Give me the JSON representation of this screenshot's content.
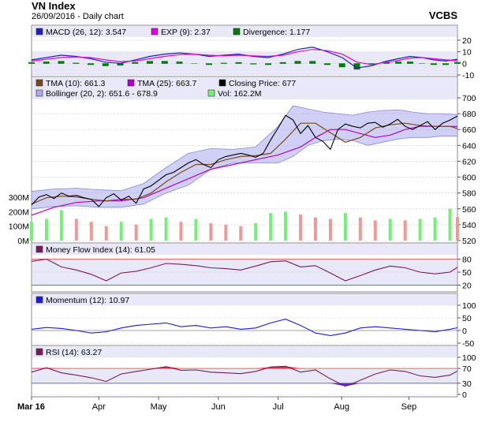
{
  "header": {
    "title": "VN Index",
    "date": "26/09/2016",
    "frequency": "Daily chart",
    "broker": "VCBS"
  },
  "colors": {
    "panel_bg": "#e8e8f8",
    "legend_bg": "#e8e8f8",
    "grid": "#c8c8c8",
    "macd": "#1e1ec8",
    "signal": "#e000e0",
    "divergence": "#007a00",
    "tma10": "#7a4a14",
    "tma25": "#b000d0",
    "close": "#000000",
    "bollinger_fill": "#aaaaee",
    "bollinger_line": "#8888dd",
    "vol_up": "#77ee77",
    "vol_down": "#ee9999",
    "mfi": "#7a1a5a",
    "momentum": "#1a1ae0",
    "rsi": "#7a1a5a",
    "overbought": "#ee6666",
    "oversold": "#6666ee",
    "rsi_fill_hi": "#dd3333",
    "rsi_fill_lo": "#5533cc"
  },
  "chart_data": [
    {
      "type": "line",
      "name": "macd-panel",
      "legend": [
        {
          "label": "MACD (26, 12): 3.547",
          "color": "#1e1ec8"
        },
        {
          "label": "EXP (9): 2.37",
          "color": "#e000e0"
        },
        {
          "label": "Divergence: 1.177",
          "color": "#007a00"
        }
      ],
      "ylim": [
        -10,
        22
      ],
      "yticks": [
        -10,
        0,
        10,
        20
      ],
      "series": [
        {
          "name": "MACD (26, 12)",
          "x": [
            0,
            5,
            10,
            15,
            20,
            25,
            30,
            35,
            40,
            45,
            50,
            55,
            60,
            65,
            70,
            75,
            80,
            85,
            90,
            95,
            100,
            105,
            110,
            115,
            120,
            124,
            128,
            132,
            136,
            140,
            144
          ],
          "values": [
            3,
            5,
            7,
            6,
            4,
            1,
            0,
            3,
            6,
            8,
            9,
            8,
            6,
            7,
            8,
            6,
            5,
            8,
            12,
            14,
            10,
            5,
            -4,
            -2,
            2,
            4,
            6,
            5,
            3,
            2,
            3.547
          ]
        },
        {
          "name": "EXP (9)",
          "x": [
            0,
            5,
            10,
            15,
            20,
            25,
            30,
            35,
            40,
            45,
            50,
            55,
            60,
            65,
            70,
            75,
            80,
            85,
            90,
            95,
            100,
            105,
            110,
            115,
            120,
            124,
            128,
            132,
            136,
            140,
            144
          ],
          "values": [
            2,
            3.5,
            5,
            5.5,
            5,
            3,
            1.5,
            2,
            4,
            6,
            7.5,
            8,
            7,
            6.5,
            7,
            6.5,
            6,
            7,
            10,
            12,
            11,
            8,
            1,
            -1,
            1,
            2.5,
            4.5,
            5,
            4,
            3,
            2.37
          ]
        }
      ],
      "bars": {
        "name": "Divergence",
        "x": [
          0,
          5,
          10,
          15,
          20,
          25,
          30,
          35,
          40,
          45,
          50,
          55,
          60,
          65,
          70,
          75,
          80,
          85,
          90,
          95,
          100,
          105,
          110,
          115,
          120,
          124,
          128,
          132,
          136,
          140,
          144
        ],
        "values": [
          1,
          1.5,
          2,
          0.5,
          -1,
          -2,
          -1.5,
          1,
          2,
          2,
          1.5,
          0,
          -1,
          0.5,
          1,
          -0.5,
          -1,
          1,
          2,
          2,
          -1,
          -3,
          -5,
          -1,
          1,
          1.5,
          1.5,
          0,
          -1,
          -1,
          1.177
        ]
      }
    },
    {
      "type": "line",
      "name": "price-panel",
      "legend": [
        {
          "label": "TMA (10): 661.3",
          "color": "#7a4a14"
        },
        {
          "label": "TMA (25): 663.7",
          "color": "#b000d0"
        },
        {
          "label": "Closing Price: 677",
          "color": "#000000"
        },
        {
          "label": "Bollinger (20, 2): 651.6 - 678.9",
          "color": "#aaaaee"
        },
        {
          "label": "Vol: 162.2M",
          "color": "#77ee77"
        }
      ],
      "ylim": [
        520,
        700
      ],
      "yticks": [
        520,
        540,
        560,
        580,
        600,
        620,
        640,
        660,
        680,
        700
      ],
      "vol_ticks": [
        "0M",
        "100M",
        "200M",
        "300M"
      ],
      "vol_max": 300,
      "x_labels": [
        {
          "x": 0,
          "label": "Mar 16"
        },
        {
          "x": 18,
          "label": "Apr"
        },
        {
          "x": 34,
          "label": "May"
        },
        {
          "x": 50,
          "label": "Jun"
        },
        {
          "x": 66,
          "label": "Jul"
        },
        {
          "x": 83,
          "label": "Aug"
        },
        {
          "x": 101,
          "label": "Sep"
        }
      ],
      "close": {
        "x": [
          0,
          2,
          4,
          6,
          8,
          10,
          12,
          14,
          16,
          18,
          20,
          22,
          24,
          26,
          28,
          30,
          32,
          34,
          36,
          38,
          40,
          42,
          44,
          46,
          48,
          50,
          52,
          54,
          56,
          58,
          60,
          62,
          64,
          66,
          68,
          70,
          72,
          74,
          76,
          78,
          80,
          82,
          84,
          86,
          88,
          90,
          92,
          94,
          96,
          98,
          100,
          102,
          104,
          106,
          108,
          110,
          112,
          114
        ],
        "values": [
          565,
          575,
          578,
          573,
          580,
          576,
          577,
          574,
          572,
          563,
          574,
          579,
          571,
          576,
          567,
          585,
          589,
          596,
          603,
          606,
          612,
          618,
          622,
          616,
          612,
          622,
          626,
          628,
          630,
          628,
          625,
          630,
          647,
          662,
          678,
          672,
          655,
          665,
          650,
          645,
          635,
          660,
          667,
          664,
          662,
          668,
          669,
          663,
          667,
          673,
          664,
          660,
          665,
          670,
          660,
          668,
          672,
          677
        ]
      },
      "tma10": {
        "x": [
          0,
          4,
          8,
          12,
          16,
          20,
          24,
          28,
          32,
          36,
          40,
          44,
          48,
          52,
          56,
          60,
          64,
          68,
          72,
          76,
          80,
          84,
          88,
          92,
          96,
          100,
          104,
          108,
          112,
          114
        ],
        "values": [
          566,
          574,
          576,
          575,
          572,
          570,
          572,
          572,
          580,
          594,
          606,
          616,
          616,
          622,
          626,
          627,
          630,
          648,
          668,
          668,
          656,
          644,
          650,
          662,
          666,
          668,
          665,
          664,
          664,
          661.3
        ]
      },
      "tma25": {
        "x": [
          0,
          6,
          12,
          18,
          24,
          30,
          36,
          42,
          48,
          54,
          60,
          66,
          72,
          76,
          80,
          84,
          88,
          92,
          96,
          100,
          104,
          108,
          112,
          114
        ],
        "values": [
          552,
          562,
          568,
          570,
          570,
          574,
          586,
          598,
          610,
          616,
          622,
          628,
          638,
          650,
          660,
          660,
          655,
          650,
          653,
          660,
          664,
          664,
          664,
          663.7
        ]
      },
      "boll_upper": {
        "x": [
          0,
          6,
          12,
          18,
          24,
          30,
          36,
          42,
          48,
          54,
          60,
          66,
          70,
          74,
          78,
          82,
          86,
          90,
          94,
          98,
          102,
          106,
          110,
          114
        ],
        "values": [
          582,
          585,
          586,
          584,
          583,
          592,
          612,
          630,
          636,
          635,
          638,
          664,
          690,
          686,
          682,
          680,
          678,
          682,
          684,
          685,
          682,
          680,
          680,
          678.9
        ]
      },
      "boll_lower": {
        "x": [
          0,
          6,
          12,
          18,
          24,
          30,
          36,
          42,
          48,
          54,
          60,
          66,
          70,
          74,
          78,
          82,
          86,
          90,
          94,
          98,
          102,
          106,
          110,
          114
        ],
        "values": [
          560,
          563,
          564,
          562,
          562,
          566,
          580,
          590,
          610,
          618,
          618,
          618,
          626,
          640,
          646,
          648,
          646,
          640,
          644,
          648,
          650,
          650,
          652,
          651.6
        ]
      },
      "volume": {
        "x": [
          0,
          4,
          8,
          12,
          16,
          20,
          24,
          28,
          32,
          36,
          40,
          44,
          48,
          52,
          56,
          60,
          64,
          68,
          72,
          76,
          80,
          84,
          88,
          92,
          96,
          100,
          104,
          108,
          112,
          114
        ],
        "values": [
          130,
          150,
          210,
          150,
          130,
          100,
          130,
          110,
          150,
          160,
          130,
          150,
          120,
          110,
          100,
          120,
          190,
          200,
          180,
          160,
          150,
          190,
          160,
          140,
          150,
          140,
          150,
          160,
          220,
          162.2
        ]
      }
    },
    {
      "type": "line",
      "name": "mfi-panel",
      "legend": [
        {
          "label": "Money Flow Index (14): 61.05",
          "color": "#7a1a5a"
        }
      ],
      "ylim": [
        10,
        90
      ],
      "yticks": [
        20,
        50,
        80
      ],
      "overbought": 80,
      "oversold": 20,
      "series": [
        {
          "name": "Money Flow Index (14)",
          "x": [
            0,
            4,
            8,
            12,
            16,
            20,
            24,
            28,
            32,
            36,
            40,
            44,
            48,
            52,
            56,
            60,
            64,
            68,
            72,
            76,
            80,
            84,
            88,
            92,
            96,
            100,
            104,
            108,
            112,
            114
          ],
          "values": [
            75,
            80,
            62,
            55,
            45,
            30,
            48,
            52,
            60,
            70,
            68,
            65,
            60,
            58,
            55,
            64,
            74,
            76,
            62,
            65,
            48,
            30,
            42,
            55,
            64,
            60,
            50,
            46,
            50,
            61.05
          ]
        }
      ]
    },
    {
      "type": "line",
      "name": "momentum-panel",
      "legend": [
        {
          "label": "Momentum (12): 10.97",
          "color": "#1a1ae0"
        }
      ],
      "ylim": [
        -50,
        100
      ],
      "yticks": [
        -50,
        0,
        50,
        100
      ],
      "series": [
        {
          "name": "Momentum (12)",
          "x": [
            0,
            4,
            8,
            12,
            16,
            20,
            24,
            28,
            32,
            36,
            40,
            44,
            48,
            52,
            56,
            60,
            64,
            68,
            72,
            76,
            80,
            84,
            88,
            92,
            96,
            100,
            104,
            108,
            112,
            114
          ],
          "values": [
            5,
            12,
            8,
            0,
            -10,
            -5,
            10,
            20,
            25,
            30,
            15,
            20,
            10,
            15,
            5,
            10,
            30,
            45,
            20,
            -10,
            -20,
            -10,
            10,
            15,
            10,
            5,
            0,
            -5,
            5,
            10.97
          ]
        }
      ]
    },
    {
      "type": "line",
      "name": "rsi-panel",
      "legend": [
        {
          "label": "RSI (14): 63.27",
          "color": "#7a1a5a"
        }
      ],
      "ylim": [
        0,
        100
      ],
      "yticks": [
        0,
        30,
        70,
        100
      ],
      "overbought": 70,
      "oversold": 30,
      "series": [
        {
          "name": "RSI (14)",
          "x": [
            0,
            4,
            8,
            12,
            16,
            20,
            24,
            28,
            32,
            36,
            40,
            44,
            48,
            52,
            56,
            60,
            64,
            68,
            72,
            76,
            80,
            84,
            88,
            92,
            96,
            100,
            104,
            108,
            112,
            114
          ],
          "values": [
            60,
            72,
            58,
            52,
            45,
            35,
            55,
            62,
            68,
            75,
            65,
            66,
            60,
            58,
            56,
            62,
            74,
            76,
            60,
            66,
            42,
            22,
            38,
            55,
            66,
            62,
            50,
            46,
            52,
            63.27
          ]
        }
      ]
    }
  ]
}
